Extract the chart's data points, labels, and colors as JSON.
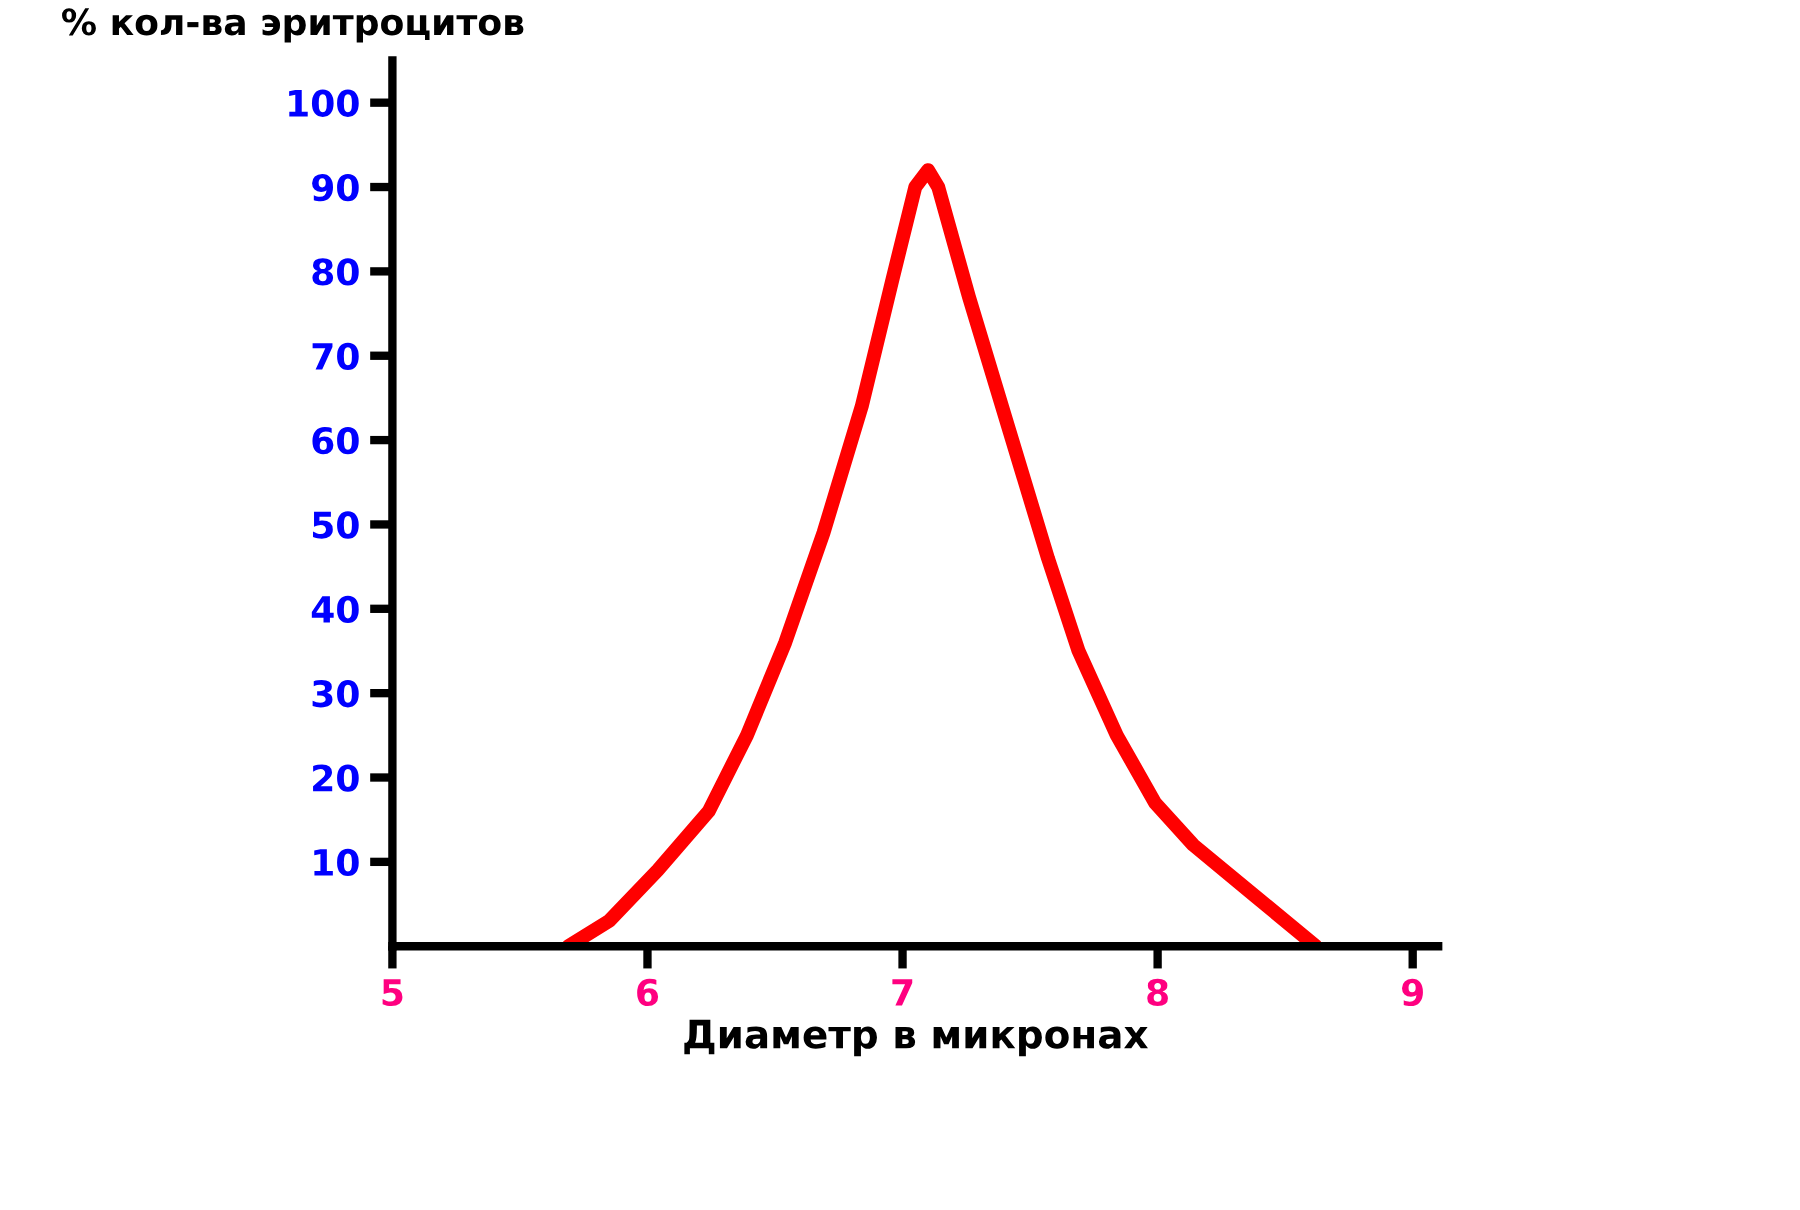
{
  "chart_data": {
    "type": "line",
    "ylabel": "% кол-ва эритроцитов",
    "xlabel": "Диаметр в микронах",
    "x": [
      5.69,
      5.85,
      6.04,
      6.24,
      6.39,
      6.54,
      6.69,
      6.84,
      6.96,
      7.05,
      7.1,
      7.14,
      7.26,
      7.42,
      7.57,
      7.69,
      7.84,
      7.99,
      8.14,
      8.38,
      8.62
    ],
    "series": [
      {
        "color": "#ff0000",
        "values": [
          0,
          3,
          9,
          16,
          25,
          36,
          49,
          64,
          79,
          90,
          92,
          90,
          77,
          61,
          46,
          35,
          25,
          17,
          12,
          6,
          0
        ]
      }
    ],
    "xlim": [
      5,
      9.1
    ],
    "xticks": [
      5,
      6,
      7,
      8,
      9
    ],
    "ylim": [
      0,
      105
    ],
    "yticks": [
      10,
      20,
      30,
      40,
      50,
      60,
      70,
      80,
      90,
      100
    ],
    "grid": false,
    "legend": false,
    "marker": "none",
    "line_style": "solid"
  }
}
